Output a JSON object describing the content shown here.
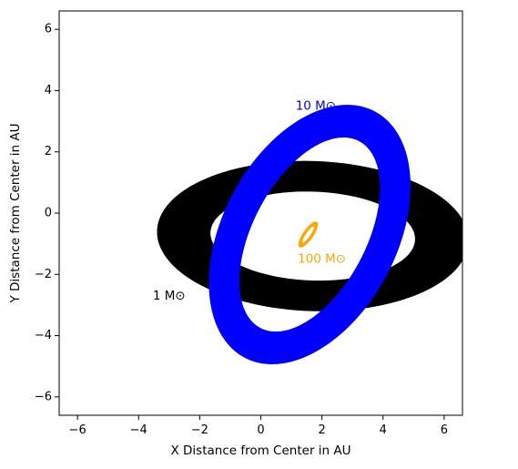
{
  "chart_data": {
    "type": "scatter",
    "title": "",
    "xlabel": "X Distance from Center in AU",
    "ylabel": "Y Distance from Center in AU",
    "xlim": [
      -6.6,
      6.6
    ],
    "ylim": [
      -6.6,
      6.6
    ],
    "xticks": [
      -6,
      -4,
      -2,
      0,
      2,
      4,
      6
    ],
    "yticks": [
      -6,
      -4,
      -2,
      0,
      2,
      4,
      6
    ],
    "xtick_labels": [
      "−6",
      "−4",
      "−2",
      "0",
      "2",
      "4",
      "6"
    ],
    "ytick_labels": [
      "−6",
      "−4",
      "−2",
      "0",
      "2",
      "4",
      "6"
    ],
    "grid": false,
    "series": [
      {
        "name": "1 M⊙",
        "color": "#000000",
        "center": [
          1.7,
          -0.75
        ],
        "outer_axes": [
          5.1,
          2.45
        ],
        "inner_axes": [
          3.35,
          1.45
        ],
        "rotation_deg": -2,
        "label_position": [
          -3.0,
          -2.7
        ]
      },
      {
        "name": "10 M⊙",
        "color": "#0000ff",
        "center": [
          1.6,
          -0.7
        ],
        "outer_axes": [
          4.55,
          2.85
        ],
        "inner_axes": [
          3.45,
          1.85
        ],
        "rotation_deg": 62,
        "label_position": [
          1.8,
          3.5
        ]
      },
      {
        "name": "100 M⊙",
        "color": "#ffa500",
        "center": [
          1.55,
          -0.7
        ],
        "outer_axes": [
          0.5,
          0.17
        ],
        "inner_axes": [
          0.32,
          0.07
        ],
        "rotation_deg": 55,
        "label_position": [
          2.0,
          -1.5
        ]
      }
    ]
  }
}
